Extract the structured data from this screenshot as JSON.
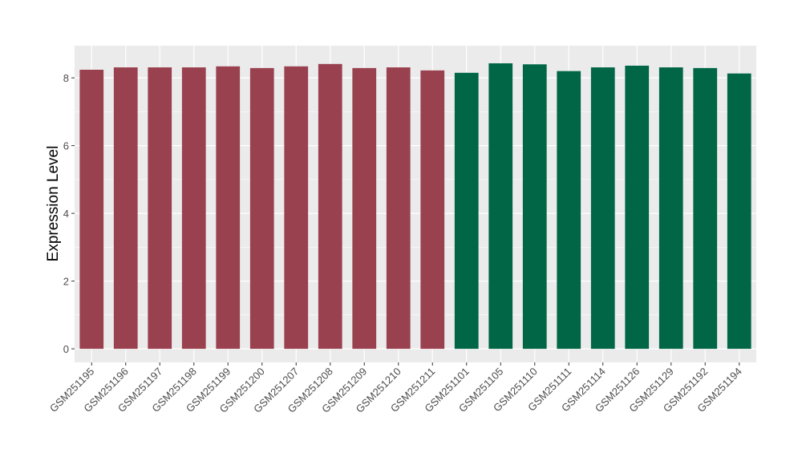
{
  "chart_data": {
    "type": "bar",
    "title": "",
    "xlabel": "",
    "ylabel": "Expression Level",
    "ylim": [
      -0.4,
      8.95
    ],
    "yticks": [
      0,
      2,
      4,
      6,
      8
    ],
    "grid": true,
    "legend": "none",
    "categories": [
      "GSM251195",
      "GSM251196",
      "GSM251197",
      "GSM251198",
      "GSM251199",
      "GSM251200",
      "GSM251207",
      "GSM251208",
      "GSM251209",
      "GSM251210",
      "GSM251211",
      "GSM251101",
      "GSM251105",
      "GSM251110",
      "GSM251111",
      "GSM251114",
      "GSM251126",
      "GSM251129",
      "GSM251192",
      "GSM251194"
    ],
    "values": [
      8.24,
      8.31,
      8.31,
      8.31,
      8.34,
      8.29,
      8.34,
      8.41,
      8.29,
      8.31,
      8.22,
      8.15,
      8.43,
      8.4,
      8.2,
      8.31,
      8.36,
      8.31,
      8.29,
      8.13
    ],
    "groups": [
      0,
      0,
      0,
      0,
      0,
      0,
      0,
      0,
      0,
      0,
      0,
      1,
      1,
      1,
      1,
      1,
      1,
      1,
      1,
      1
    ],
    "group_colors": [
      "#9A4150",
      "#006646"
    ],
    "panel_background": "#EBEBEB"
  }
}
